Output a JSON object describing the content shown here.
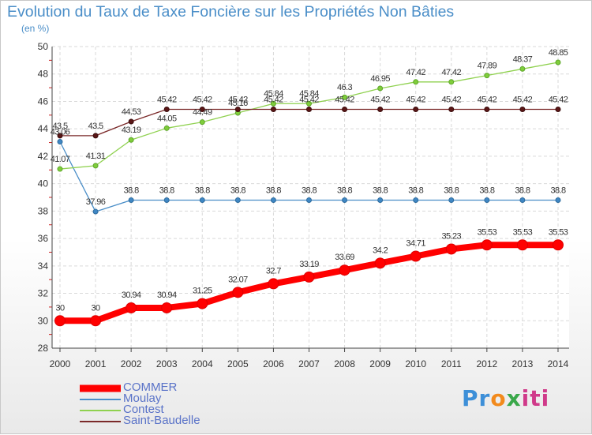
{
  "chart_data": {
    "type": "line",
    "title": "Evolution du Taux de Taxe Foncière sur les Propriétés Non Bâties",
    "ylabel": "(en %)",
    "xlabel": "",
    "x": [
      "2000",
      "2001",
      "2002",
      "2003",
      "2004",
      "2005",
      "2006",
      "2007",
      "2008",
      "2009",
      "2010",
      "2011",
      "2012",
      "2013",
      "2014"
    ],
    "ylim": [
      28,
      50
    ],
    "yticks": [
      28,
      30,
      32,
      34,
      36,
      38,
      40,
      42,
      44,
      46,
      48,
      50
    ],
    "grid": true,
    "legend_position": "bottom-left",
    "series": [
      {
        "name": "COMMER",
        "color": "#ff0000",
        "values": [
          30,
          30,
          30.94,
          30.94,
          31.25,
          32.07,
          32.7,
          33.19,
          33.69,
          34.2,
          34.71,
          35.23,
          35.53,
          35.53,
          35.53
        ],
        "labels": [
          "30",
          "30",
          "30.94",
          "30.94",
          "31.25",
          "32.07",
          "32.7",
          "33.19",
          "33.69",
          "34.2",
          "34.71",
          "35.23",
          "35.53",
          "35.53",
          "35.53"
        ]
      },
      {
        "name": "Moulay",
        "color": "#4a8ec8",
        "values": [
          43.06,
          37.96,
          38.8,
          38.8,
          38.8,
          38.8,
          38.8,
          38.8,
          38.8,
          38.8,
          38.8,
          38.8,
          38.8,
          38.8,
          38.8
        ],
        "labels": [
          "43.06",
          "37.96",
          "38.8",
          "38.8",
          "38.8",
          "38.8",
          "38.8",
          "38.8",
          "38.8",
          "38.8",
          "38.8",
          "38.8",
          "38.8",
          "38.8",
          "38.8"
        ]
      },
      {
        "name": "Contest",
        "color": "#8fd14f",
        "values": [
          41.07,
          41.31,
          43.19,
          44.05,
          44.49,
          45.16,
          45.84,
          45.84,
          46.3,
          46.95,
          47.42,
          47.42,
          47.89,
          48.37,
          48.85
        ],
        "labels": [
          "41.07",
          "41.31",
          "43.19",
          "44.05",
          "44.49",
          "45.16",
          "45.84",
          "45.84",
          "46.3",
          "46.95",
          "47.42",
          "47.42",
          "47.89",
          "48.37",
          "48.85"
        ]
      },
      {
        "name": "Saint-Baudelle",
        "color": "#7b2a2a",
        "values": [
          43.5,
          43.5,
          44.53,
          45.42,
          45.42,
          45.42,
          45.42,
          45.42,
          45.42,
          45.42,
          45.42,
          45.42,
          45.42,
          45.42,
          45.42
        ],
        "labels": [
          "43.5",
          "43.5",
          "44.53",
          "45.42",
          "45.42",
          "45.42",
          "45.42",
          "45.42",
          "45.42",
          "45.42",
          "45.42",
          "45.42",
          "45.42",
          "45.42",
          "45.42"
        ]
      }
    ]
  },
  "logo": {
    "parts": [
      "Pr",
      "o",
      "x",
      "iti"
    ]
  }
}
